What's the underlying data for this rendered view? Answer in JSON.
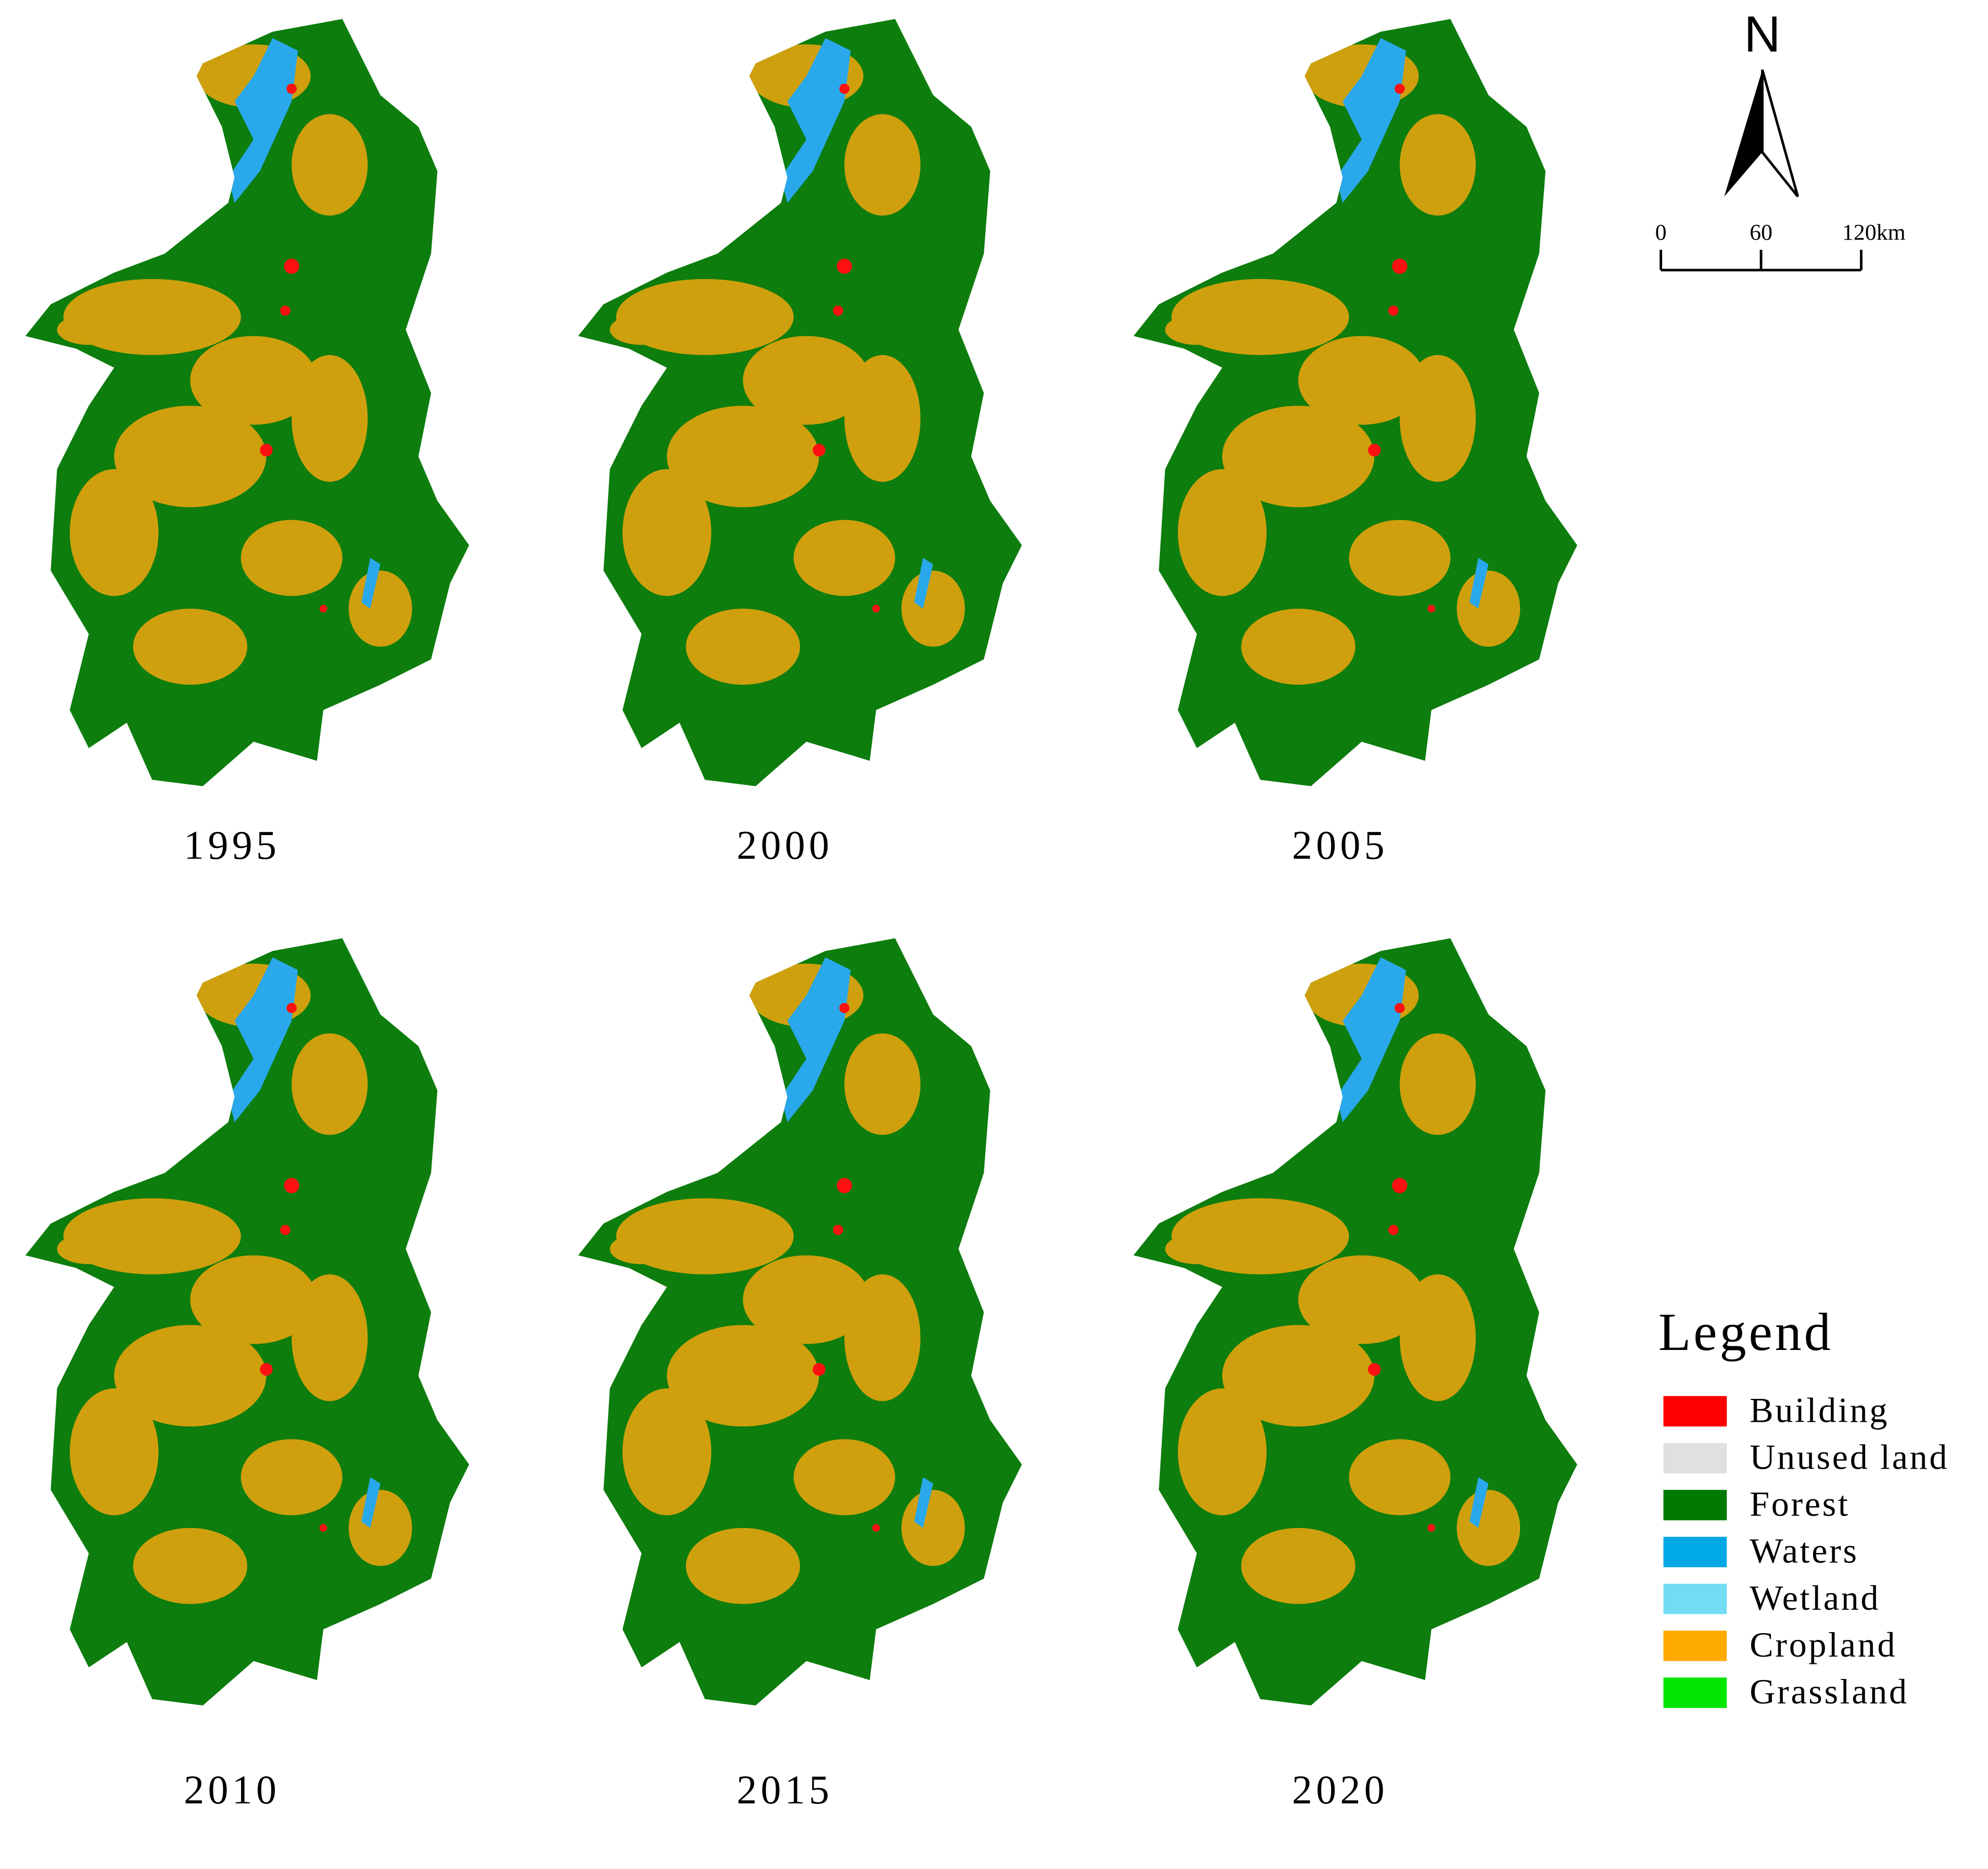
{
  "panels": [
    {
      "year": "1995"
    },
    {
      "year": "2000"
    },
    {
      "year": "2005"
    },
    {
      "year": "2010"
    },
    {
      "year": "2015"
    },
    {
      "year": "2020"
    }
  ],
  "north_arrow": {
    "label": "N"
  },
  "scale_bar": {
    "labels": [
      "0",
      "60",
      "120km"
    ]
  },
  "legend": {
    "title": "Legend",
    "items": [
      {
        "label": "Building",
        "color": "#ff0000"
      },
      {
        "label": "Unused land",
        "color": "#e0e0e0"
      },
      {
        "label": "Forest",
        "color": "#007a00"
      },
      {
        "label": "Waters",
        "color": "#00a8e6"
      },
      {
        "label": "Wetland",
        "color": "#73dcf5"
      },
      {
        "label": "Cropland",
        "color": "#ffaa00"
      },
      {
        "label": "Grassland",
        "color": "#00e600"
      }
    ]
  }
}
